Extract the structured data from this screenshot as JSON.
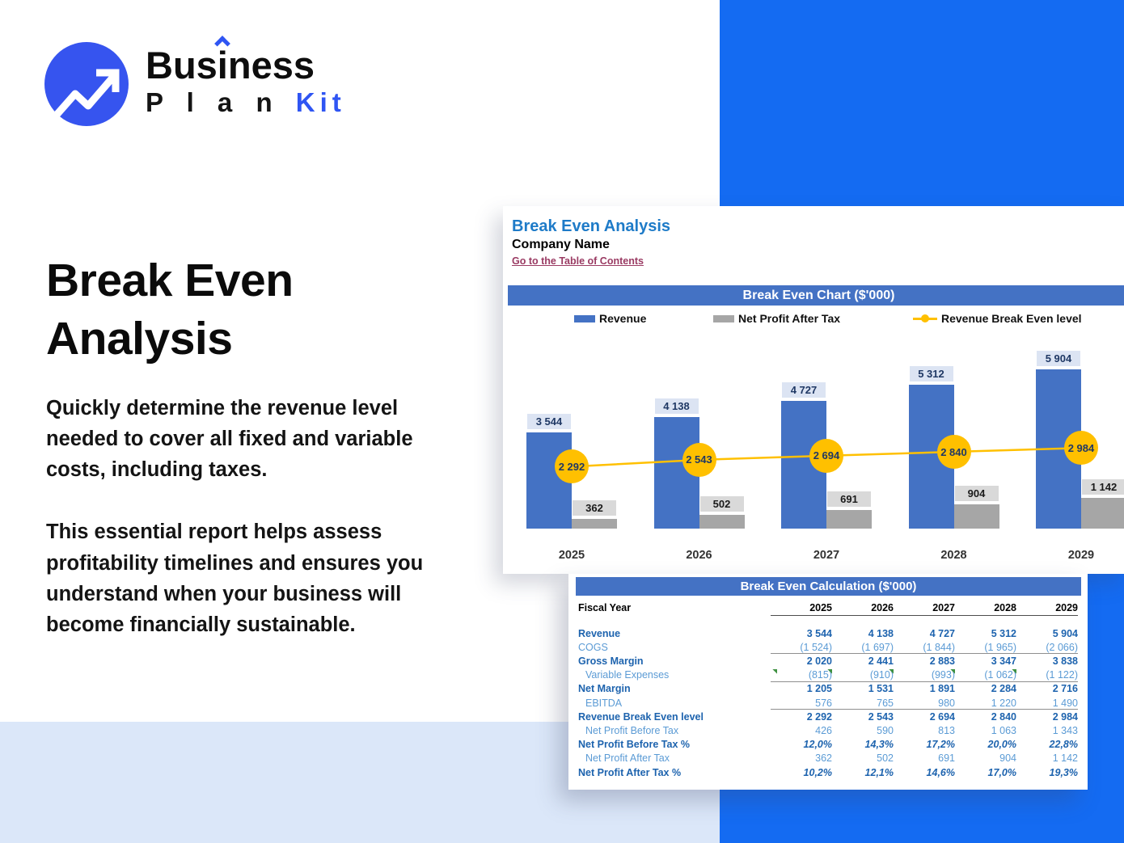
{
  "brand": {
    "name_line1": "Business",
    "name_line2_plan": "P l a n",
    "name_line2_kit": "Kit"
  },
  "hero": {
    "title_line1": "Break Even",
    "title_line2": "Analysis",
    "paragraph1": "Quickly determine the revenue level needed to cover all fixed and variable costs, including taxes.",
    "paragraph2": "This essential report helps assess profitability timelines and ensures you understand when your business will become financially sustainable."
  },
  "sheet": {
    "title": "Break Even Analysis",
    "company": "Company Name",
    "link": "Go to the Table of Contents",
    "chart_header": "Break Even Chart ($'000)",
    "table_header": "Break Even Calculation ($'000)"
  },
  "chart_data": {
    "type": "bar",
    "title": "Break Even Chart ($'000)",
    "categories": [
      "2025",
      "2026",
      "2027",
      "2028",
      "2029"
    ],
    "series": [
      {
        "name": "Revenue",
        "type": "bar",
        "color": "#4472C4",
        "values": [
          3544,
          4138,
          4727,
          5312,
          5904
        ],
        "labels": [
          "3 544",
          "4 138",
          "4 727",
          "5 312",
          "5 904"
        ]
      },
      {
        "name": "Net Profit After Tax",
        "type": "bar",
        "color": "#A6A6A6",
        "values": [
          362,
          502,
          691,
          904,
          1142
        ],
        "labels": [
          "362",
          "502",
          "691",
          "904",
          "1 142"
        ]
      },
      {
        "name": "Revenue Break Even level",
        "type": "line",
        "color": "#FFC000",
        "values": [
          2292,
          2543,
          2694,
          2840,
          2984
        ],
        "labels": [
          "2 292",
          "2 543",
          "2 694",
          "2 840",
          "2 984"
        ]
      }
    ],
    "ylim": [
      0,
      6200
    ],
    "grid": false,
    "legend_position": "top"
  },
  "table": {
    "fiscal_label": "Fiscal Year",
    "years": [
      "2025",
      "2026",
      "2027",
      "2028",
      "2029"
    ],
    "rows": [
      {
        "label": "Revenue",
        "values": [
          "3 544",
          "4 138",
          "4 727",
          "5 312",
          "5 904"
        ],
        "style": "bold"
      },
      {
        "label": "COGS",
        "values": [
          "(1 524)",
          "(1 697)",
          "(1 844)",
          "(1 965)",
          "(2 066)"
        ],
        "style": "regular",
        "border_bottom": true
      },
      {
        "label": "Gross Margin",
        "values": [
          "2 020",
          "2 441",
          "2 883",
          "3 347",
          "3 838"
        ],
        "style": "bold"
      },
      {
        "label": "Variable Expenses",
        "values": [
          "(815)",
          "(910)",
          "(993)",
          "(1 062)",
          "(1 122)"
        ],
        "style": "regular",
        "indent": true,
        "border_bottom": true,
        "comment_flags": true
      },
      {
        "label": "Net Margin",
        "values": [
          "1 205",
          "1 531",
          "1 891",
          "2 284",
          "2 716"
        ],
        "style": "bold"
      },
      {
        "label": "EBITDA",
        "values": [
          "576",
          "765",
          "980",
          "1 220",
          "1 490"
        ],
        "style": "regular",
        "indent": true,
        "border_bottom": true
      },
      {
        "label": "Revenue Break Even level",
        "values": [
          "2 292",
          "2 543",
          "2 694",
          "2 840",
          "2 984"
        ],
        "style": "bold"
      },
      {
        "label": "Net Profit Before Tax",
        "values": [
          "426",
          "590",
          "813",
          "1 063",
          "1 343"
        ],
        "style": "regular",
        "indent": true
      },
      {
        "label": "Net Profit Before Tax %",
        "values": [
          "12,0%",
          "14,3%",
          "17,2%",
          "20,0%",
          "22,8%"
        ],
        "style": "bold-italic"
      },
      {
        "label": "Net Profit After Tax",
        "values": [
          "362",
          "502",
          "691",
          "904",
          "1 142"
        ],
        "style": "regular",
        "indent": true
      },
      {
        "label": "Net Profit After Tax %",
        "values": [
          "10,2%",
          "12,1%",
          "14,6%",
          "17,0%",
          "19,3%"
        ],
        "style": "bold-italic"
      }
    ]
  },
  "colors": {
    "brand_blue": "#3654EF",
    "panel_blue": "#146BF2",
    "light_band_blue": "#DBE7F9",
    "excel_header_blue": "#4472C4",
    "sheet_title_blue": "#1E7BC8",
    "link_maroon": "#9A3B63",
    "revenue_bar": "#4472C4",
    "net_profit_bar": "#A6A6A6",
    "break_even_gold": "#FFC000"
  }
}
